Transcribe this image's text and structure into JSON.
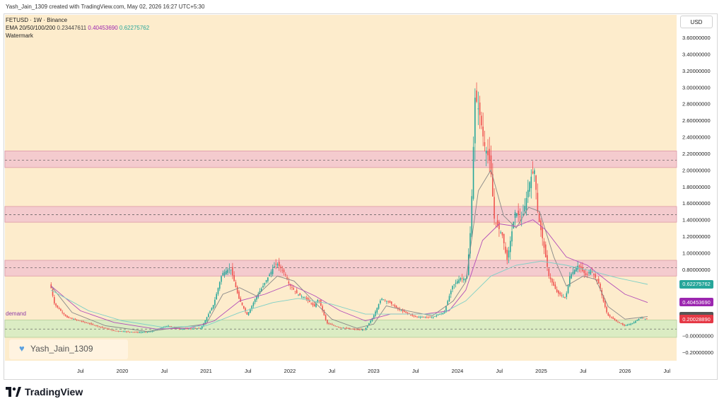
{
  "header": {
    "text": "Yash_Jain_1309 created with TradingView.com, May 02, 2026 16:27 UTC+5:30"
  },
  "legend": {
    "symbol_line": "FETUSD · 1W · Binance",
    "ema_label": "EMA 20/50/100/200",
    "ema_v1": "0.23447611",
    "ema_v2": "0.40453690",
    "ema_v3": "0.62275762",
    "watermark_label": "Watermark"
  },
  "watermark": {
    "text": "Yash_Jain_1309",
    "icon": "heart-icon"
  },
  "demand_label": "demand",
  "footer": {
    "logo_text": "TradingView",
    "logo_icon": "tradingview-logo-icon"
  },
  "currency_button": "USD",
  "price_tags": [
    {
      "value": "0.62275762",
      "color": "#26a69a"
    },
    {
      "value": "0.40453690",
      "color": "#9c27b0"
    },
    {
      "value": "0.23447611",
      "color": "#555555"
    },
    {
      "value": "0.20028890",
      "color": "#e53946"
    }
  ],
  "colors": {
    "background": "#fdeccc",
    "up": "#26a69a",
    "down": "#ef5350",
    "zone_fill": "#f3c6cf",
    "demand_fill": "#d6ecc2",
    "ema_fast": "#888888",
    "ema_mid": "#b34db8",
    "ema_slow": "#7fd0c6"
  },
  "chart_data": {
    "type": "candlestick",
    "title": "FETUSD · 1W · Binance",
    "y_axis": {
      "range": [
        -0.3,
        3.65
      ],
      "ticks": [
        "3.60000000",
        "3.40000000",
        "3.20000000",
        "3.00000000",
        "2.80000000",
        "2.60000000",
        "2.40000000",
        "2.20000000",
        "2.00000000",
        "1.80000000",
        "1.60000000",
        "1.40000000",
        "1.20000000",
        "1.00000000",
        "0.80000000",
        "0.60000000",
        "0.40000000",
        "0.20000000",
        "−0.00000000",
        "−0.20000000"
      ],
      "tick_values": [
        3.6,
        3.4,
        3.2,
        3.0,
        2.8,
        2.6,
        2.4,
        2.2,
        2.0,
        1.8,
        1.6,
        1.4,
        1.2,
        1.0,
        0.8,
        0.6,
        0.4,
        0.2,
        0.0,
        -0.2
      ]
    },
    "x_axis": {
      "range": [
        2019.0,
        2026.75
      ],
      "ticks": [
        "Jul",
        "2020",
        "Jul",
        "2021",
        "Jul",
        "2022",
        "Jul",
        "2023",
        "Jul",
        "2024",
        "Jul",
        "2025",
        "Jul",
        "2026",
        "Jul"
      ],
      "tick_values": [
        2019.5,
        2020.0,
        2020.5,
        2021.0,
        2021.5,
        2022.0,
        2022.5,
        2023.0,
        2023.5,
        2024.0,
        2024.5,
        2025.0,
        2025.5,
        2026.0,
        2026.5
      ]
    },
    "zones": [
      {
        "type": "resistance",
        "low": 2.03,
        "high": 2.23,
        "mid": 2.12
      },
      {
        "type": "resistance",
        "low": 1.37,
        "high": 1.56,
        "mid": 1.46
      },
      {
        "type": "resistance",
        "low": 0.72,
        "high": 0.91,
        "mid": 0.82
      },
      {
        "type": "demand",
        "low": -0.02,
        "high": 0.19,
        "mid": 0.08
      }
    ],
    "price_anchors": [
      [
        2019.15,
        0.62
      ],
      [
        2019.2,
        0.38
      ],
      [
        2019.35,
        0.22
      ],
      [
        2019.6,
        0.15
      ],
      [
        2019.9,
        0.06
      ],
      [
        2020.2,
        0.04
      ],
      [
        2020.35,
        0.05
      ],
      [
        2020.55,
        0.12
      ],
      [
        2020.7,
        0.08
      ],
      [
        2020.95,
        0.09
      ],
      [
        2021.1,
        0.38
      ],
      [
        2021.2,
        0.75
      ],
      [
        2021.3,
        0.82
      ],
      [
        2021.4,
        0.45
      ],
      [
        2021.5,
        0.25
      ],
      [
        2021.6,
        0.45
      ],
      [
        2021.7,
        0.62
      ],
      [
        2021.8,
        0.8
      ],
      [
        2021.85,
        0.88
      ],
      [
        2021.95,
        0.75
      ],
      [
        2022.0,
        0.62
      ],
      [
        2022.1,
        0.5
      ],
      [
        2022.2,
        0.45
      ],
      [
        2022.3,
        0.35
      ],
      [
        2022.35,
        0.45
      ],
      [
        2022.45,
        0.15
      ],
      [
        2022.6,
        0.1
      ],
      [
        2022.75,
        0.08
      ],
      [
        2022.9,
        0.07
      ],
      [
        2023.0,
        0.22
      ],
      [
        2023.1,
        0.45
      ],
      [
        2023.2,
        0.4
      ],
      [
        2023.3,
        0.32
      ],
      [
        2023.5,
        0.23
      ],
      [
        2023.7,
        0.22
      ],
      [
        2023.85,
        0.28
      ],
      [
        2023.95,
        0.6
      ],
      [
        2024.05,
        0.7
      ],
      [
        2024.12,
        0.68
      ],
      [
        2024.17,
        1.35
      ],
      [
        2024.22,
        2.9
      ],
      [
        2024.28,
        2.65
      ],
      [
        2024.33,
        2.3
      ],
      [
        2024.4,
        2.1
      ],
      [
        2024.45,
        1.4
      ],
      [
        2024.55,
        1.2
      ],
      [
        2024.6,
        0.9
      ],
      [
        2024.7,
        1.5
      ],
      [
        2024.78,
        1.4
      ],
      [
        2024.88,
        1.9
      ],
      [
        2024.93,
        2.0
      ],
      [
        2024.97,
        1.45
      ],
      [
        2025.02,
        1.2
      ],
      [
        2025.1,
        0.72
      ],
      [
        2025.2,
        0.52
      ],
      [
        2025.3,
        0.45
      ],
      [
        2025.35,
        0.72
      ],
      [
        2025.45,
        0.85
      ],
      [
        2025.55,
        0.72
      ],
      [
        2025.6,
        0.8
      ],
      [
        2025.7,
        0.62
      ],
      [
        2025.75,
        0.42
      ],
      [
        2025.8,
        0.25
      ],
      [
        2025.9,
        0.18
      ],
      [
        2026.0,
        0.12
      ],
      [
        2026.1,
        0.15
      ],
      [
        2026.2,
        0.22
      ],
      [
        2026.27,
        0.2
      ]
    ],
    "ema_series": [
      {
        "name": "EMA 20",
        "color": "#888888",
        "points": [
          [
            2019.15,
            0.6
          ],
          [
            2019.4,
            0.28
          ],
          [
            2019.8,
            0.12
          ],
          [
            2020.3,
            0.05
          ],
          [
            2020.6,
            0.09
          ],
          [
            2021.0,
            0.14
          ],
          [
            2021.2,
            0.5
          ],
          [
            2021.4,
            0.58
          ],
          [
            2021.6,
            0.48
          ],
          [
            2021.85,
            0.72
          ],
          [
            2022.05,
            0.66
          ],
          [
            2022.3,
            0.4
          ],
          [
            2022.5,
            0.2
          ],
          [
            2022.8,
            0.09
          ],
          [
            2023.0,
            0.14
          ],
          [
            2023.15,
            0.36
          ],
          [
            2023.4,
            0.3
          ],
          [
            2023.7,
            0.24
          ],
          [
            2023.95,
            0.42
          ],
          [
            2024.1,
            0.65
          ],
          [
            2024.25,
            1.75
          ],
          [
            2024.4,
            2.0
          ],
          [
            2024.55,
            1.45
          ],
          [
            2024.7,
            1.3
          ],
          [
            2024.85,
            1.55
          ],
          [
            2024.98,
            1.5
          ],
          [
            2025.15,
            0.95
          ],
          [
            2025.3,
            0.6
          ],
          [
            2025.5,
            0.72
          ],
          [
            2025.65,
            0.68
          ],
          [
            2025.8,
            0.35
          ],
          [
            2026.0,
            0.2
          ],
          [
            2026.27,
            0.23
          ]
        ]
      },
      {
        "name": "EMA 50",
        "color": "#b34db8",
        "points": [
          [
            2019.15,
            0.6
          ],
          [
            2019.5,
            0.3
          ],
          [
            2019.9,
            0.16
          ],
          [
            2020.4,
            0.08
          ],
          [
            2020.8,
            0.09
          ],
          [
            2021.1,
            0.18
          ],
          [
            2021.4,
            0.42
          ],
          [
            2021.7,
            0.5
          ],
          [
            2022.0,
            0.62
          ],
          [
            2022.3,
            0.48
          ],
          [
            2022.6,
            0.3
          ],
          [
            2022.9,
            0.18
          ],
          [
            2023.2,
            0.26
          ],
          [
            2023.6,
            0.26
          ],
          [
            2023.9,
            0.3
          ],
          [
            2024.1,
            0.55
          ],
          [
            2024.3,
            1.15
          ],
          [
            2024.5,
            1.35
          ],
          [
            2024.7,
            1.32
          ],
          [
            2024.9,
            1.4
          ],
          [
            2025.05,
            1.28
          ],
          [
            2025.3,
            0.95
          ],
          [
            2025.55,
            0.85
          ],
          [
            2025.8,
            0.65
          ],
          [
            2026.0,
            0.5
          ],
          [
            2026.27,
            0.4
          ]
        ]
      },
      {
        "name": "EMA 100",
        "color": "#7fd0c6",
        "points": [
          [
            2019.15,
            0.55
          ],
          [
            2019.6,
            0.3
          ],
          [
            2020.0,
            0.18
          ],
          [
            2020.5,
            0.1
          ],
          [
            2021.0,
            0.12
          ],
          [
            2021.4,
            0.28
          ],
          [
            2021.8,
            0.4
          ],
          [
            2022.1,
            0.45
          ],
          [
            2022.5,
            0.38
          ],
          [
            2022.9,
            0.26
          ],
          [
            2023.3,
            0.26
          ],
          [
            2023.8,
            0.26
          ],
          [
            2024.1,
            0.42
          ],
          [
            2024.4,
            0.72
          ],
          [
            2024.7,
            0.85
          ],
          [
            2025.0,
            0.9
          ],
          [
            2025.3,
            0.85
          ],
          [
            2025.6,
            0.78
          ],
          [
            2025.9,
            0.7
          ],
          [
            2026.27,
            0.62
          ]
        ]
      }
    ]
  }
}
